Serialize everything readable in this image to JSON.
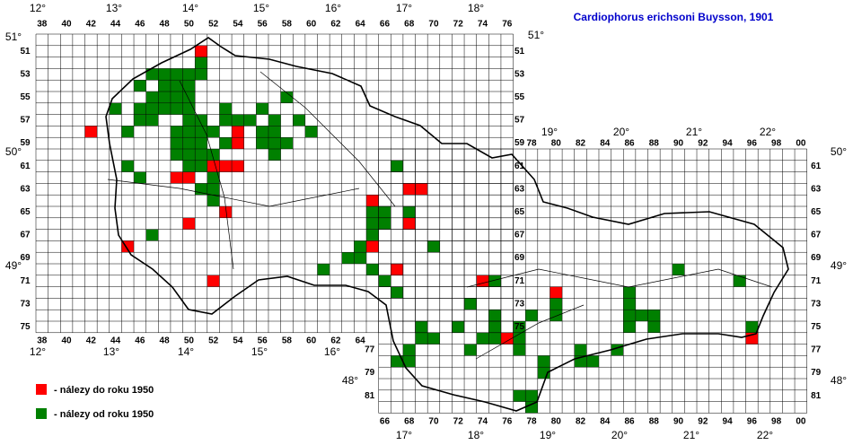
{
  "title": "Cardiophorus erichsoni Buysson, 1901",
  "legend": [
    {
      "label": "- nálezy do roku 1950",
      "color": "#ff0000"
    },
    {
      "label": "- nálezy od roku 1950",
      "color": "#008000"
    }
  ],
  "grid_labels": {
    "cz_top": [
      "38",
      "40",
      "42",
      "44",
      "46",
      "48",
      "50",
      "52",
      "54",
      "56",
      "58",
      "60",
      "62",
      "64",
      "66",
      "68",
      "70",
      "72",
      "74",
      "76"
    ],
    "cz_bottom": [
      "38",
      "40",
      "42",
      "44",
      "46",
      "48",
      "50",
      "52",
      "54",
      "56",
      "58",
      "60",
      "62",
      "64"
    ],
    "cz_left": [
      "51",
      "53",
      "55",
      "57",
      "59",
      "61",
      "63",
      "65",
      "67",
      "69",
      "71",
      "73",
      "75"
    ],
    "cz_right": [
      "51",
      "53",
      "55",
      "57",
      "59",
      "61",
      "63",
      "65",
      "67",
      "69",
      "71",
      "73",
      "75"
    ],
    "sk_top": [
      "78",
      "80",
      "82",
      "84",
      "86",
      "88",
      "90",
      "92",
      "94",
      "96",
      "98",
      "00"
    ],
    "sk_bottom": [
      "66",
      "68",
      "70",
      "72",
      "74",
      "76",
      "78",
      "80",
      "82",
      "84",
      "86",
      "88",
      "90",
      "92",
      "94",
      "96",
      "98",
      "00"
    ],
    "sk_left": [
      "77",
      "79",
      "81"
    ],
    "sk_right": [
      "61",
      "63",
      "65",
      "67",
      "69",
      "71",
      "73",
      "75",
      "77",
      "79",
      "81"
    ]
  },
  "degrees": {
    "top": [
      "12°",
      "13°",
      "14°",
      "15°",
      "16°",
      "17°",
      "18°"
    ],
    "sk_top": [
      "19°",
      "20°",
      "21°",
      "22°"
    ],
    "bottom": [
      "12°",
      "13°",
      "14°",
      "15°",
      "16°",
      "17°",
      "18°",
      "19°",
      "20°",
      "21°",
      "22°"
    ],
    "left": [
      "51°",
      "50°",
      "49°",
      "48°"
    ],
    "right": [
      "51°",
      "50°",
      "49°",
      "48°"
    ]
  },
  "records": {
    "before_1950": [
      [
        51,
        51
      ],
      [
        42,
        58
      ],
      [
        54,
        58
      ],
      [
        54,
        59
      ],
      [
        52,
        61
      ],
      [
        53,
        61
      ],
      [
        54,
        61
      ],
      [
        49,
        62
      ],
      [
        50,
        62
      ],
      [
        53,
        65
      ],
      [
        50,
        66
      ],
      [
        45,
        68
      ],
      [
        52,
        71
      ],
      [
        65,
        64
      ],
      [
        68,
        63
      ],
      [
        69,
        63
      ],
      [
        68,
        66
      ],
      [
        65,
        68
      ],
      [
        67,
        70
      ],
      [
        74,
        71
      ],
      [
        80,
        72
      ],
      [
        76,
        76
      ],
      [
        96,
        76
      ]
    ],
    "since_1950": [
      [
        51,
        52
      ],
      [
        47,
        53
      ],
      [
        48,
        53
      ],
      [
        49,
        53
      ],
      [
        50,
        53
      ],
      [
        51,
        53
      ],
      [
        46,
        54
      ],
      [
        48,
        54
      ],
      [
        49,
        54
      ],
      [
        50,
        54
      ],
      [
        47,
        55
      ],
      [
        48,
        55
      ],
      [
        49,
        55
      ],
      [
        50,
        55
      ],
      [
        58,
        55
      ],
      [
        44,
        56
      ],
      [
        46,
        56
      ],
      [
        47,
        56
      ],
      [
        48,
        56
      ],
      [
        49,
        56
      ],
      [
        50,
        56
      ],
      [
        53,
        56
      ],
      [
        56,
        56
      ],
      [
        46,
        57
      ],
      [
        47,
        57
      ],
      [
        50,
        57
      ],
      [
        51,
        57
      ],
      [
        53,
        57
      ],
      [
        54,
        57
      ],
      [
        55,
        57
      ],
      [
        57,
        57
      ],
      [
        59,
        57
      ],
      [
        45,
        58
      ],
      [
        49,
        58
      ],
      [
        50,
        58
      ],
      [
        51,
        58
      ],
      [
        52,
        58
      ],
      [
        56,
        58
      ],
      [
        57,
        58
      ],
      [
        60,
        58
      ],
      [
        49,
        59
      ],
      [
        50,
        59
      ],
      [
        51,
        59
      ],
      [
        53,
        59
      ],
      [
        56,
        59
      ],
      [
        57,
        59
      ],
      [
        58,
        59
      ],
      [
        49,
        60
      ],
      [
        50,
        60
      ],
      [
        51,
        60
      ],
      [
        52,
        60
      ],
      [
        57,
        60
      ],
      [
        45,
        61
      ],
      [
        50,
        61
      ],
      [
        51,
        61
      ],
      [
        67,
        61
      ],
      [
        46,
        62
      ],
      [
        52,
        62
      ],
      [
        51,
        63
      ],
      [
        52,
        63
      ],
      [
        52,
        64
      ],
      [
        65,
        65
      ],
      [
        66,
        65
      ],
      [
        68,
        65
      ],
      [
        65,
        66
      ],
      [
        66,
        66
      ],
      [
        47,
        67
      ],
      [
        65,
        67
      ],
      [
        64,
        68
      ],
      [
        70,
        68
      ],
      [
        63,
        69
      ],
      [
        64,
        69
      ],
      [
        61,
        70
      ],
      [
        65,
        70
      ],
      [
        90,
        70
      ],
      [
        66,
        71
      ],
      [
        75,
        71
      ],
      [
        95,
        71
      ],
      [
        67,
        72
      ],
      [
        86,
        72
      ],
      [
        73,
        73
      ],
      [
        80,
        73
      ],
      [
        86,
        73
      ],
      [
        75,
        74
      ],
      [
        78,
        74
      ],
      [
        80,
        74
      ],
      [
        86,
        74
      ],
      [
        87,
        74
      ],
      [
        88,
        74
      ],
      [
        69,
        75
      ],
      [
        72,
        75
      ],
      [
        75,
        75
      ],
      [
        77,
        75
      ],
      [
        86,
        75
      ],
      [
        88,
        75
      ],
      [
        96,
        75
      ],
      [
        69,
        76
      ],
      [
        70,
        76
      ],
      [
        74,
        76
      ],
      [
        75,
        76
      ],
      [
        77,
        76
      ],
      [
        68,
        77
      ],
      [
        73,
        77
      ],
      [
        77,
        77
      ],
      [
        82,
        77
      ],
      [
        85,
        77
      ],
      [
        67,
        78
      ],
      [
        68,
        78
      ],
      [
        79,
        78
      ],
      [
        82,
        78
      ],
      [
        83,
        78
      ],
      [
        79,
        79
      ],
      [
        77,
        81
      ],
      [
        78,
        81
      ],
      [
        78,
        82
      ]
    ]
  }
}
